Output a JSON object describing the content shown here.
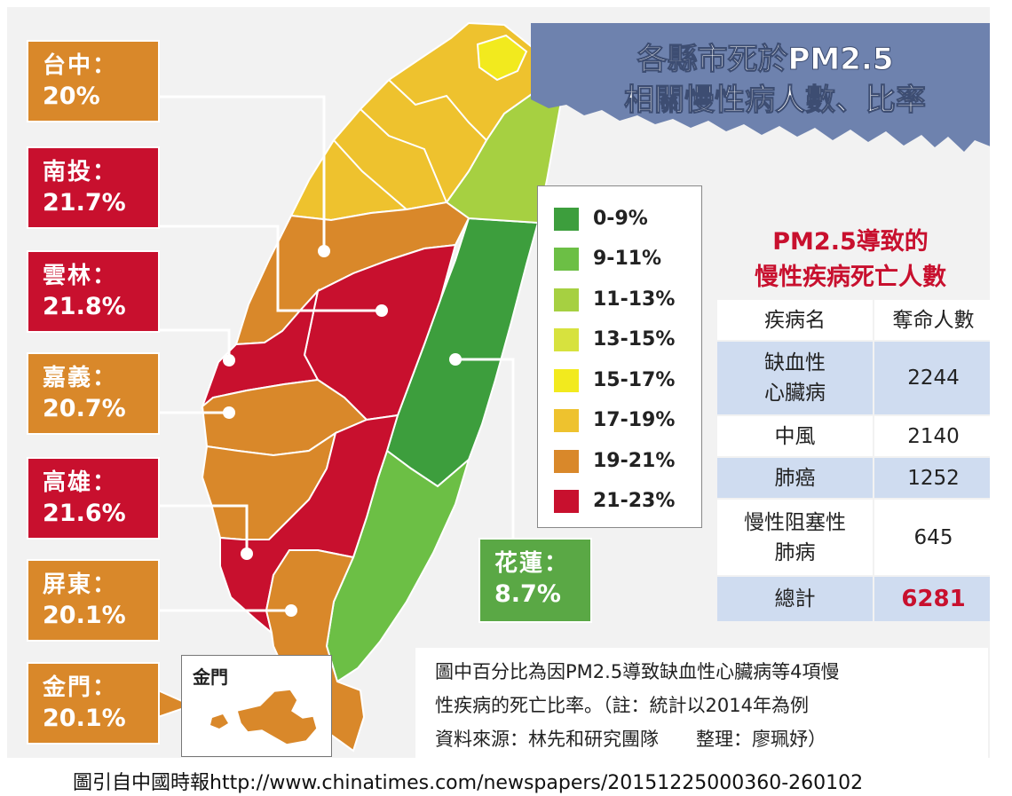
{
  "title_line1": "各縣市死於PM2.5",
  "title_line2": "相關慢性病人數、比率",
  "legend": [
    {
      "label": "0-9%",
      "color": "#3d9e3d"
    },
    {
      "label": "9-11%",
      "color": "#6cbf45"
    },
    {
      "label": "11-13%",
      "color": "#a6d041"
    },
    {
      "label": "13-15%",
      "color": "#d7e23e"
    },
    {
      "label": "15-17%",
      "color": "#f2ea1e"
    },
    {
      "label": "17-19%",
      "color": "#eec22e"
    },
    {
      "label": "19-21%",
      "color": "#d9882a"
    },
    {
      "label": "21-23%",
      "color": "#c8102e"
    }
  ],
  "cities": [
    {
      "name": "台中：",
      "pct": "20%",
      "color_class": "orange"
    },
    {
      "name": "南投：",
      "pct": "21.7%",
      "color_class": "red"
    },
    {
      "name": "雲林：",
      "pct": "21.8%",
      "color_class": "red"
    },
    {
      "name": "嘉義：",
      "pct": "20.7%",
      "color_class": "orange"
    },
    {
      "name": "高雄：",
      "pct": "21.6%",
      "color_class": "red"
    },
    {
      "name": "屏東：",
      "pct": "20.1%",
      "color_class": "orange"
    },
    {
      "name": "金門：",
      "pct": "20.1%",
      "color_class": "orange"
    }
  ],
  "hualien": {
    "name": "花蓮：",
    "pct": "8.7%"
  },
  "kinmen_label": "金門",
  "deaths_title_line1": "PM2.5導致的",
  "deaths_title_line2": "慢性疾病死亡人數",
  "table": {
    "header": [
      "疾病名",
      "奪命人數"
    ],
    "rows": [
      {
        "disease": "缺血性\n心臟病",
        "count": "2244"
      },
      {
        "disease": "中風",
        "count": "2140"
      },
      {
        "disease": "肺癌",
        "count": "1252"
      },
      {
        "disease": "慢性阻塞性\n肺病",
        "count": "645"
      }
    ],
    "total_label": "總計",
    "total_value": "6281"
  },
  "note_line1": "圖中百分比為因PM2.5導致缺血性心臟病等4項慢",
  "note_line2": "性疾病的死亡比率。（註：統計以2014年為例",
  "note_line3": "資料來源：林先和研究團隊　　整理：廖珮妤）",
  "citation": "圖引自中國時報http://www.chinatimes.com/newspapers/20151225000360-260102",
  "colors": {
    "red": "#c8102e",
    "orange": "#d9882a",
    "green": "#5aa845",
    "title_bg": "#6e82ae"
  }
}
